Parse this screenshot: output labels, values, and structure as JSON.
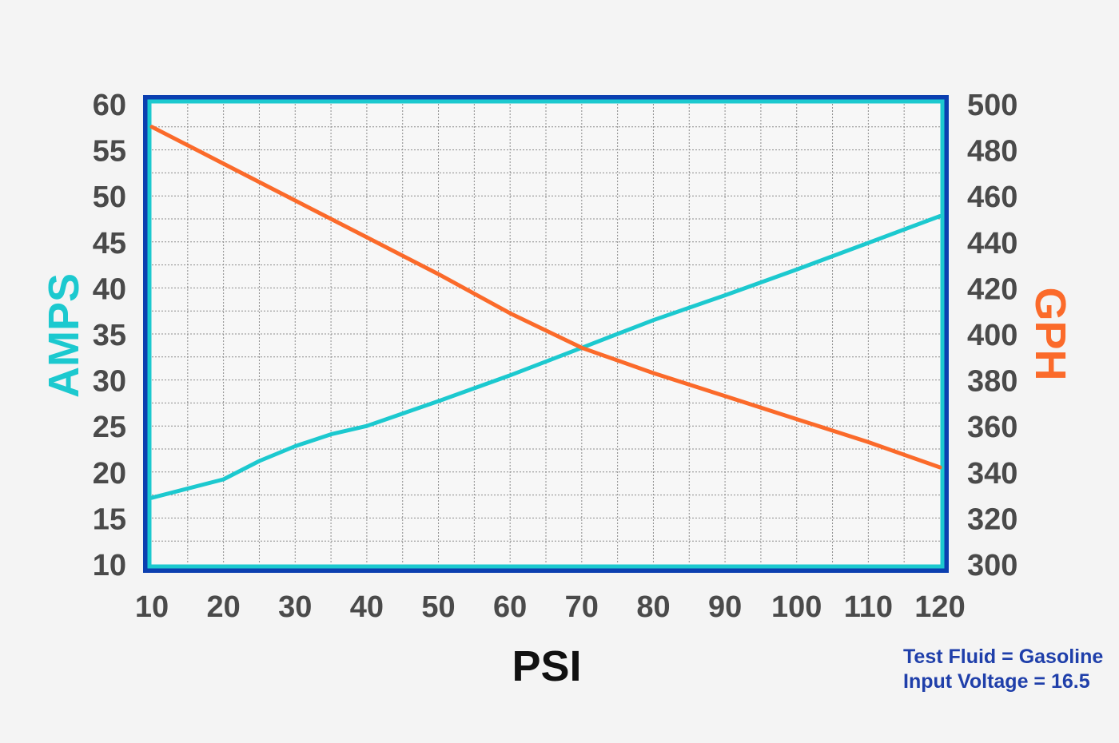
{
  "chart_data": {
    "type": "line",
    "xlabel": "PSI",
    "ylabel_left": "AMPS",
    "ylabel_right": "GPH",
    "x_ticks": [
      10,
      20,
      30,
      40,
      50,
      60,
      70,
      80,
      90,
      100,
      110,
      120
    ],
    "xlim": [
      10,
      120
    ],
    "ylim_left": [
      10,
      60
    ],
    "ylim_right": [
      300,
      500
    ],
    "y_ticks_left": [
      60,
      55,
      50,
      45,
      40,
      35,
      30,
      25,
      20,
      15,
      10
    ],
    "y_ticks_right": [
      500,
      480,
      460,
      440,
      420,
      400,
      380,
      360,
      340,
      320,
      300
    ],
    "grid": true,
    "series": [
      {
        "name": "AMPS",
        "axis": "left",
        "color": "#1cc9cf",
        "x": [
          10,
          20,
          25,
          30,
          35,
          40,
          50,
          60,
          70,
          80,
          90,
          100,
          110,
          120
        ],
        "y": [
          17.2,
          19.2,
          21.2,
          22.8,
          24.1,
          25.0,
          27.7,
          30.5,
          33.5,
          36.5,
          39.2,
          42.0,
          44.9,
          47.8
        ]
      },
      {
        "name": "GPH",
        "axis": "right",
        "color": "#fb6a2a",
        "x": [
          10,
          20,
          30,
          40,
          50,
          60,
          70,
          80,
          90,
          100,
          110,
          120
        ],
        "y": [
          490,
          474,
          458,
          442,
          426,
          409,
          394,
          383,
          373,
          363,
          353,
          342
        ]
      }
    ],
    "annotations": [
      "Test Fluid = Gasoline",
      "Input Voltage = 16.5"
    ]
  },
  "colors": {
    "frame_outer": "#0b3fb0",
    "frame_inner": "#1cc9cf",
    "plot_bg": "#f7f7f7",
    "grid": "#8c8c8c",
    "amps": "#1cc9cf",
    "gph": "#fb6a2a",
    "tick_text": "#4a4a4a",
    "psi_text": "#111111",
    "note_text": "#1f3faa"
  }
}
